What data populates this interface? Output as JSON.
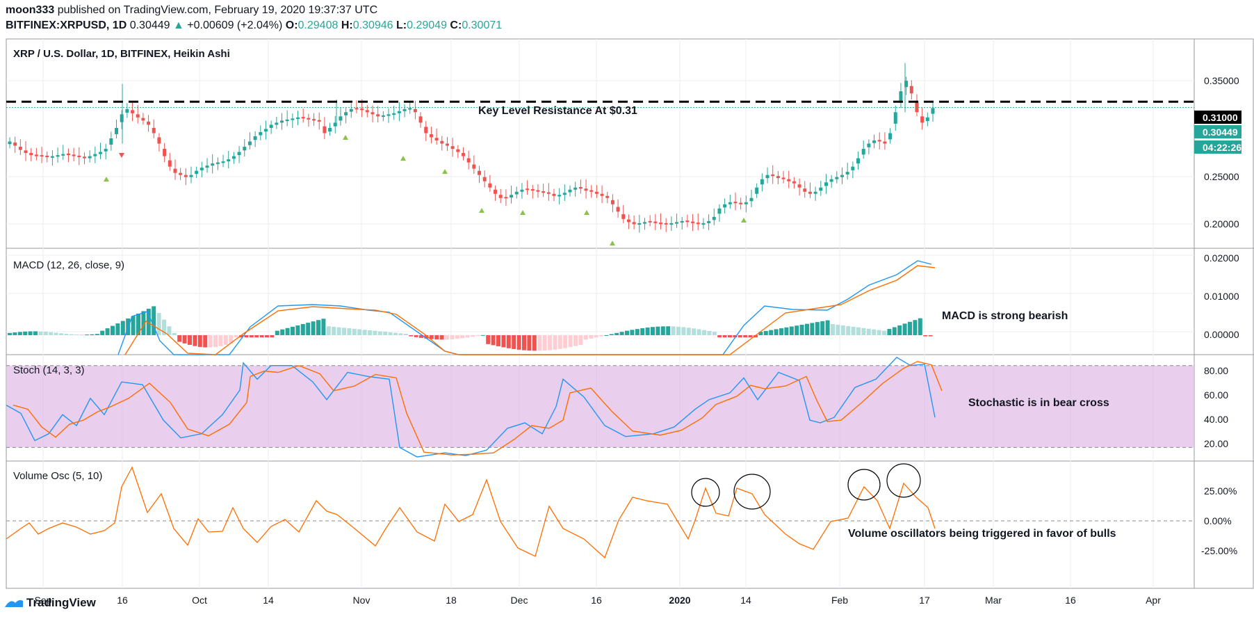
{
  "header": {
    "publisher": "moon333",
    "published_text": "published on TradingView.com, February 19, 2020 19:37:37 UTC",
    "symbol": "BITFINEX:XRPUSD, 1D",
    "last": "0.30449",
    "change": "+0.00609 (+2.04%)",
    "o_label": "O:",
    "o": "0.29408",
    "h_label": "H:",
    "h": "0.30946",
    "l_label": "L:",
    "l": "0.29049",
    "c_label": "C:",
    "c": "0.30071"
  },
  "colors": {
    "up": "#26a69a",
    "down": "#ef5350",
    "macd": "#2196f3",
    "signal": "#ff6d00",
    "stoch_band": "#e1bee7",
    "arrow": "#8bc34a"
  },
  "panes": {
    "price": {
      "title": "XRP / U.S. Dollar, 1D, BITFINEX, Heikin Ashi",
      "resistance_label": "Key Level Resistance At $0.31",
      "ticks": [
        "0.35000",
        "0.25000",
        "0.20000"
      ],
      "resistance_value": "0.31000",
      "price_tag": "0.30449",
      "countdown_tag": "04:22:26"
    },
    "macd": {
      "title": "MACD (12, 26, close, 9)",
      "annotation": "MACD is strong bearish",
      "ticks": [
        "0.02000",
        "0.01000",
        "0.00000"
      ]
    },
    "stoch": {
      "title": "Stoch (14, 3, 3)",
      "annotation": "Stochastic is in bear cross",
      "ticks": [
        "80.00",
        "60.00",
        "40.00",
        "20.00"
      ]
    },
    "volosc": {
      "title": "Volume Osc (5, 10)",
      "annotation": "Volume oscillators being triggered in favor of bulls",
      "ticks": [
        "25.00%",
        "0.00%",
        "-25.00%"
      ]
    }
  },
  "x_axis": [
    "Sep",
    "16",
    "Oct",
    "14",
    "Nov",
    "18",
    "Dec",
    "16",
    "2020",
    "14",
    "Feb",
    "17",
    "Mar",
    "16",
    "Apr"
  ],
  "brand": "TradingView",
  "chart_data": [
    {
      "type": "candlestick",
      "title": "XRP / U.S. Dollar, 1D, BITFINEX, Heikin Ashi",
      "ylim": [
        0.17,
        0.37
      ],
      "x_labels": [
        "Sep",
        "16",
        "Oct",
        "14",
        "Nov",
        "18",
        "Dec",
        "16",
        "2020",
        "14",
        "Feb",
        "17",
        "Mar",
        "16",
        "Apr"
      ],
      "close_path": [
        0.272,
        0.268,
        0.264,
        0.261,
        0.259,
        0.258,
        0.258,
        0.257,
        0.258,
        0.259,
        0.26,
        0.259,
        0.258,
        0.257,
        0.256,
        0.258,
        0.26,
        0.262,
        0.265,
        0.275,
        0.285,
        0.298,
        0.303,
        0.299,
        0.295,
        0.292,
        0.288,
        0.28,
        0.27,
        0.258,
        0.248,
        0.242,
        0.24,
        0.238,
        0.24,
        0.244,
        0.247,
        0.249,
        0.251,
        0.252,
        0.253,
        0.255,
        0.258,
        0.262,
        0.267,
        0.272,
        0.277,
        0.281,
        0.284,
        0.288,
        0.29,
        0.292,
        0.293,
        0.294,
        0.295,
        0.294,
        0.293,
        0.292,
        0.291,
        0.28,
        0.285,
        0.29,
        0.296,
        0.3,
        0.303,
        0.303,
        0.302,
        0.3,
        0.298,
        0.296,
        0.297,
        0.298,
        0.299,
        0.301,
        0.303,
        0.304,
        0.3,
        0.29,
        0.28,
        0.276,
        0.273,
        0.27,
        0.268,
        0.265,
        0.262,
        0.258,
        0.252,
        0.246,
        0.24,
        0.234,
        0.228,
        0.222,
        0.218,
        0.218,
        0.221,
        0.224,
        0.226,
        0.226,
        0.225,
        0.224,
        0.223,
        0.222,
        0.22,
        0.221,
        0.223,
        0.226,
        0.228,
        0.227,
        0.225,
        0.224,
        0.222,
        0.22,
        0.218,
        0.212,
        0.205,
        0.198,
        0.195,
        0.193,
        0.194,
        0.195,
        0.195,
        0.194,
        0.193,
        0.193,
        0.194,
        0.195,
        0.196,
        0.195,
        0.194,
        0.193,
        0.194,
        0.196,
        0.2,
        0.208,
        0.212,
        0.214,
        0.213,
        0.212,
        0.214,
        0.218,
        0.228,
        0.236,
        0.24,
        0.239,
        0.237,
        0.236,
        0.234,
        0.232,
        0.228,
        0.224,
        0.222,
        0.224,
        0.228,
        0.233,
        0.236,
        0.238,
        0.24,
        0.243,
        0.248,
        0.256,
        0.265,
        0.27,
        0.273,
        0.272,
        0.27,
        0.28,
        0.3,
        0.32,
        0.33,
        0.318,
        0.3,
        0.29,
        0.295,
        0.304
      ],
      "resistance": 0.31,
      "last_price": 0.30449
    },
    {
      "type": "histogram+line",
      "title": "MACD (12, 26, close, 9)",
      "ylim": [
        -0.005,
        0.022
      ],
      "series": [
        {
          "name": "MACD"
        },
        {
          "name": "Signal"
        },
        {
          "name": "Histogram"
        }
      ]
    },
    {
      "type": "line",
      "title": "Stoch (14, 3, 3)",
      "ylim": [
        10,
        88
      ],
      "band": [
        20,
        80
      ]
    },
    {
      "type": "line",
      "title": "Volume Osc (5, 10)",
      "ylim": [
        -35,
        45
      ]
    }
  ]
}
